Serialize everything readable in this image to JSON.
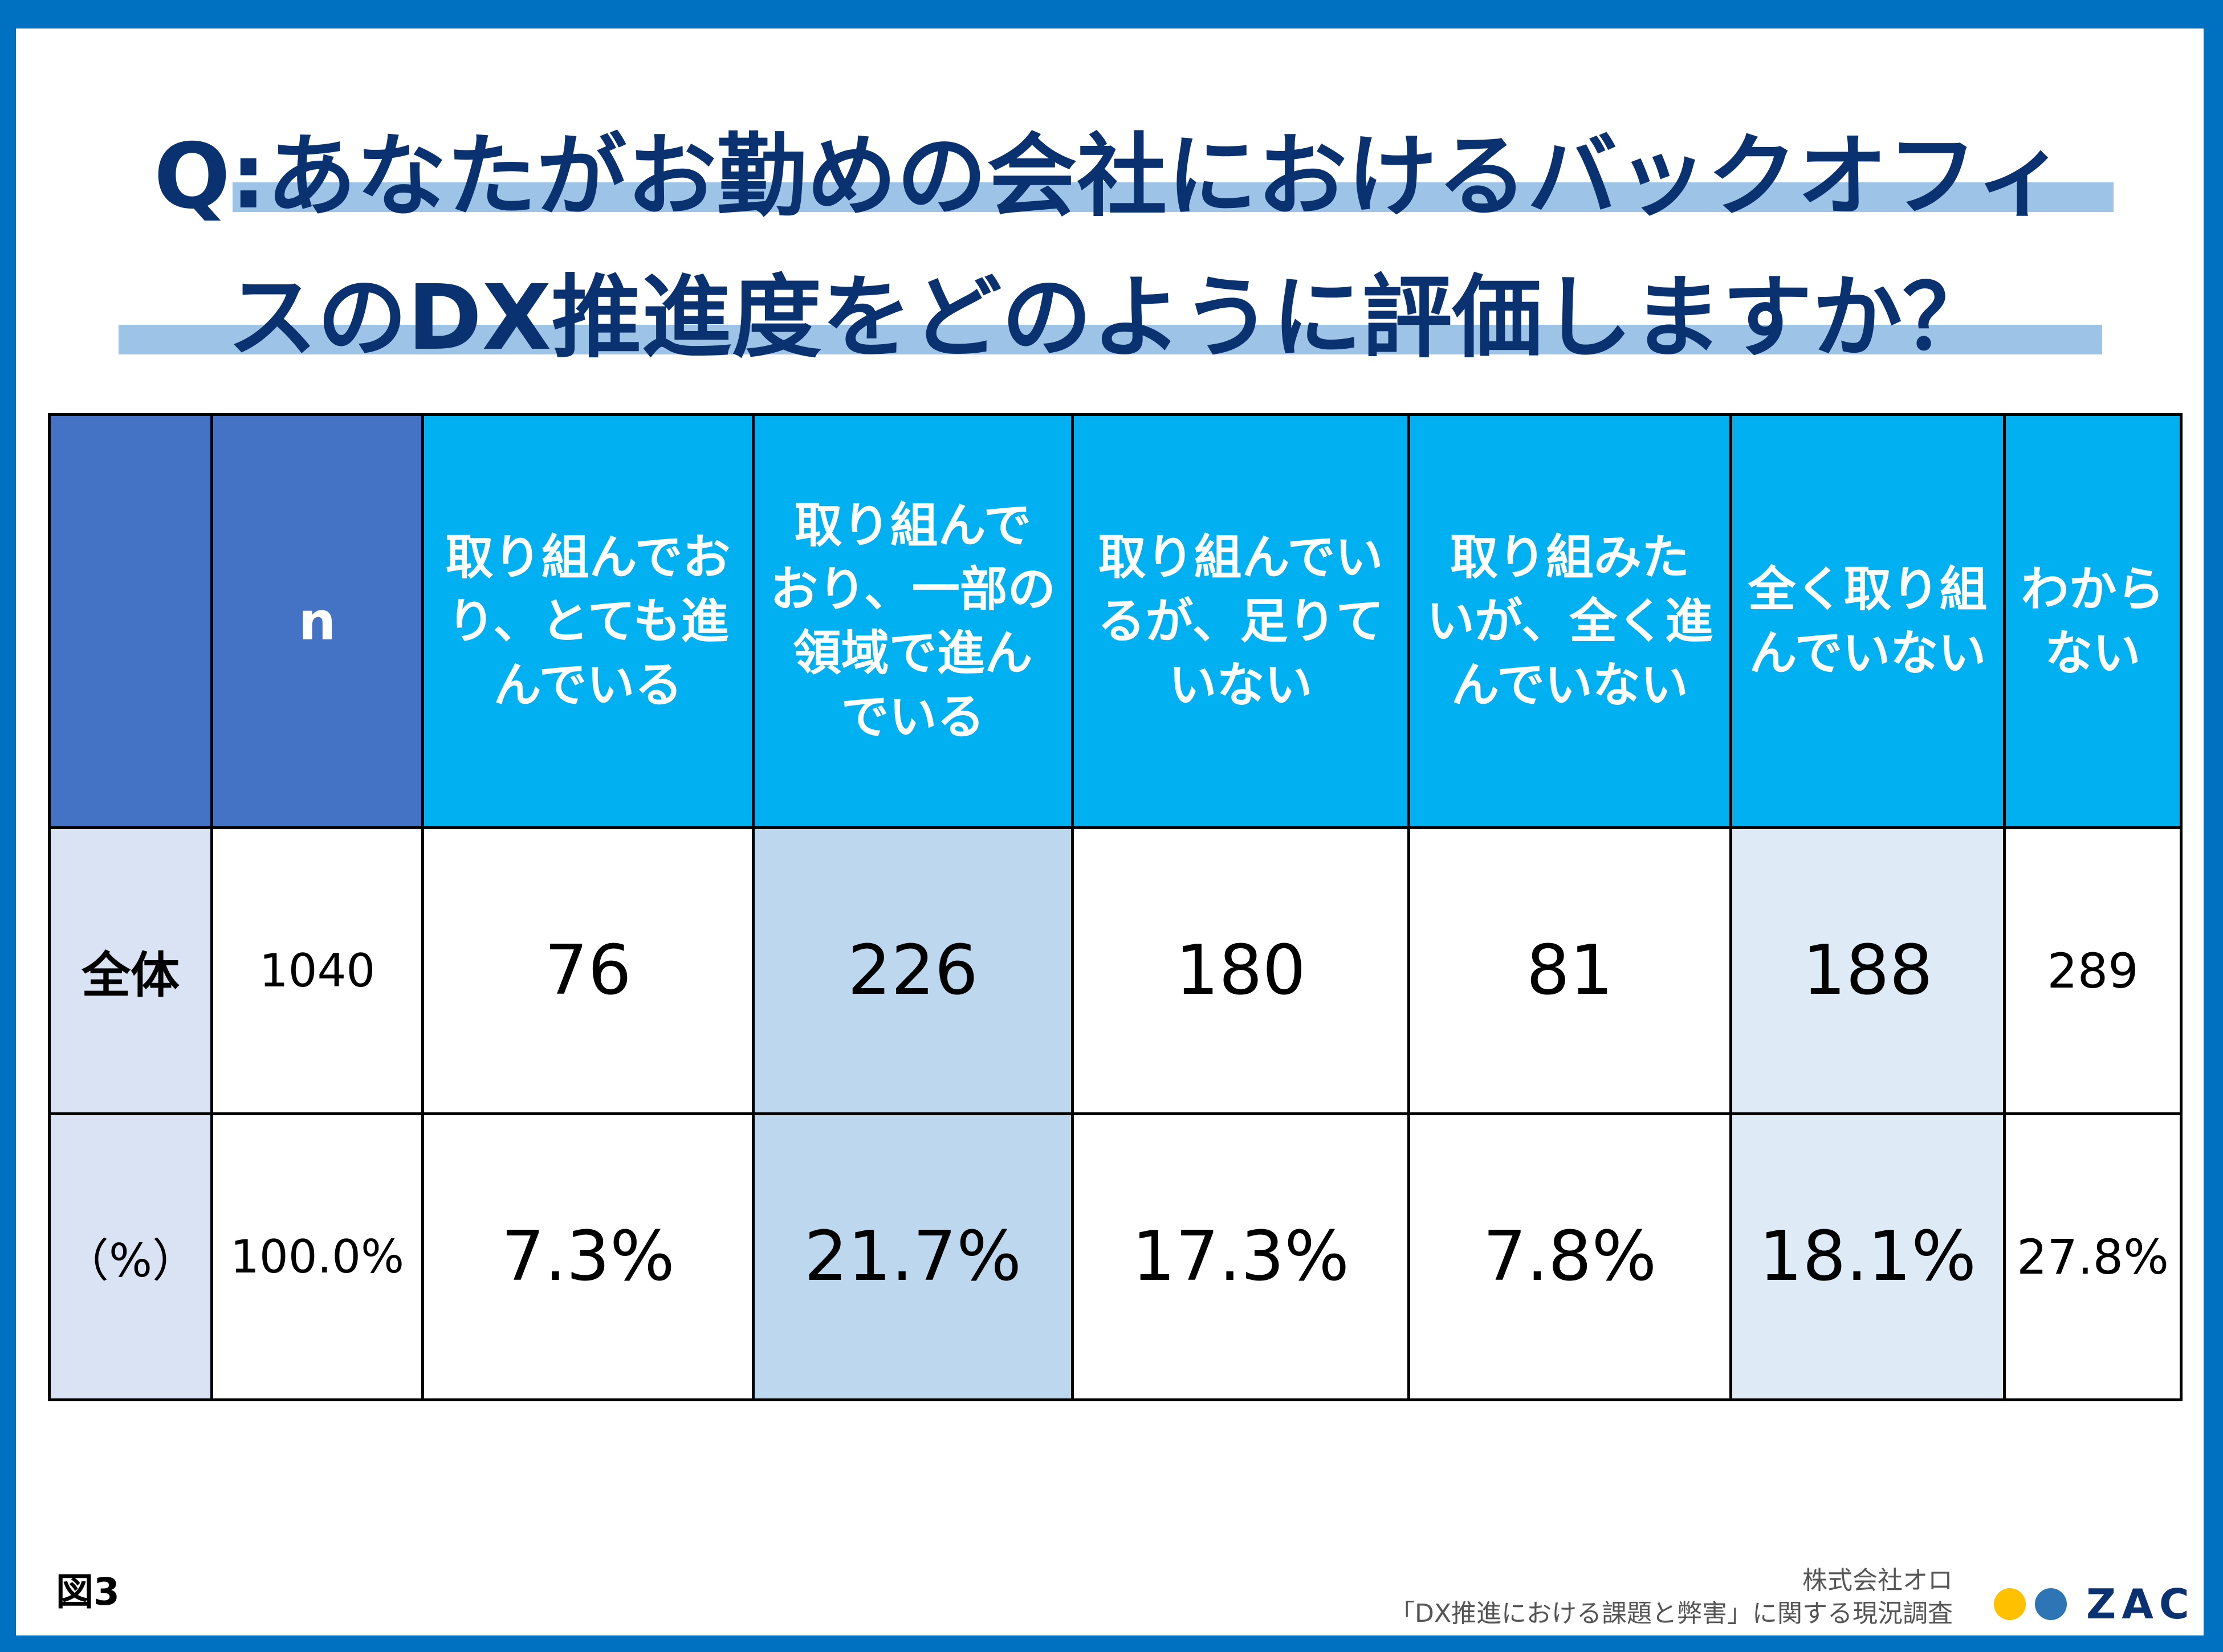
{
  "title": {
    "line1": "Q:あなたがお勤めの会社におけるバックオフィ",
    "line2": "スのDX推進度をどのように評価しますか？"
  },
  "chart_data": {
    "type": "table",
    "n_label": "n",
    "columns": [
      "取り組んでお\nり、とても進\nんでいる",
      "取り組んで\nおり、一部の\n領域で進ん\nでいる",
      "取り組んでい\nるが、足りて\nいない",
      "取り組みた\nいが、全く進\nんでいない",
      "全く取り組\nんでいない",
      "わから\nない"
    ],
    "rows": [
      {
        "label": "全体",
        "n": "1040",
        "values": [
          "76",
          "226",
          "180",
          "81",
          "188",
          "289"
        ]
      },
      {
        "label": "（%）",
        "n": "100.0%",
        "values": [
          "7.3%",
          "21.7%",
          "17.3%",
          "7.8%",
          "18.1%",
          "27.8%"
        ]
      }
    ],
    "counts": [
      76,
      226,
      180,
      81,
      188,
      289
    ],
    "percentages": [
      7.3,
      21.7,
      17.3,
      7.8,
      18.1,
      27.8
    ],
    "total": 1040
  },
  "footer": {
    "figure_label": "図3",
    "company": "株式会社オロ",
    "survey": "「DX推進における課題と弊害」に関する現況調査",
    "logo_text": "ZAC"
  },
  "colors": {
    "frame": "#0070C0",
    "title": "#0B3270",
    "header_dark": "#4472C4",
    "header_cyan": "#00B0F0",
    "highlight_strong": "#BDD7EE",
    "highlight_light": "#DEEBF7",
    "row_label_bg": "#DAE3F3",
    "logo_yellow": "#FFC000",
    "logo_blue": "#2E75B6"
  }
}
